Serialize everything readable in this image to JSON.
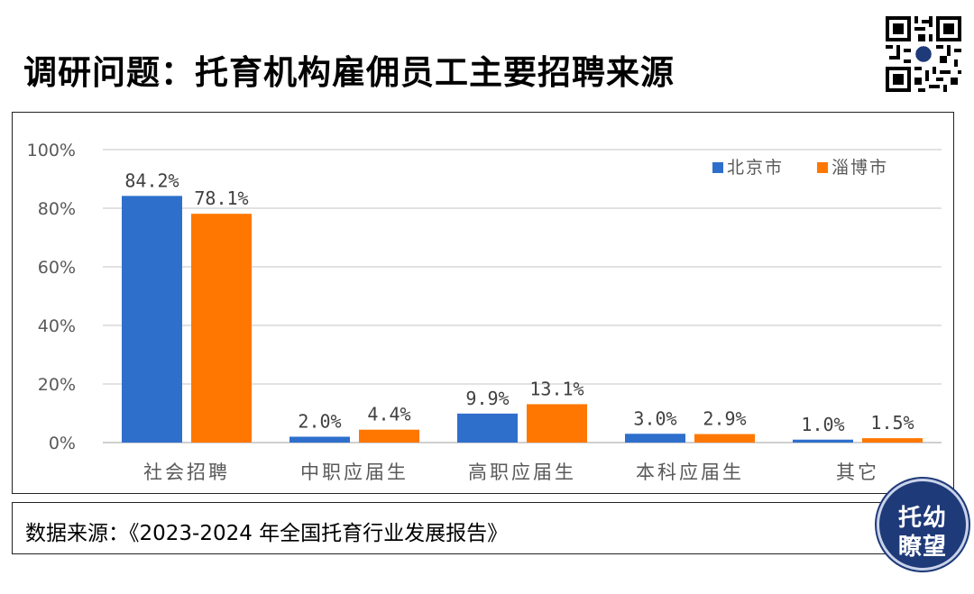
{
  "header": {
    "title": "调研问题：托育机构雇佣员工主要招聘来源"
  },
  "chart_data": {
    "type": "bar",
    "categories": [
      "社会招聘",
      "中职应届生",
      "高职应届生",
      "本科应届生",
      "其它"
    ],
    "series": [
      {
        "name": "北京市",
        "color": "#2e6fcc",
        "values": [
          84.2,
          2.0,
          9.9,
          3.0,
          1.0
        ],
        "labels": [
          "84.2%",
          "2.0%",
          "9.9%",
          "3.0%",
          "1.0%"
        ]
      },
      {
        "name": "淄博市",
        "color": "#ff7700",
        "values": [
          78.1,
          4.4,
          13.1,
          2.9,
          1.5
        ],
        "labels": [
          "78.1%",
          "4.4%",
          "13.1%",
          "2.9%",
          "1.5%"
        ]
      }
    ],
    "yticks": [
      "0%",
      "20%",
      "40%",
      "60%",
      "80%",
      "100%"
    ],
    "ylim": [
      0,
      100
    ],
    "grid": true,
    "legend_position": "top-right"
  },
  "footer": {
    "source": "数据来源：《2023-2024 年全国托育行业发展报告》"
  },
  "badge": {
    "line1": "托幼",
    "line2": "瞭望"
  }
}
